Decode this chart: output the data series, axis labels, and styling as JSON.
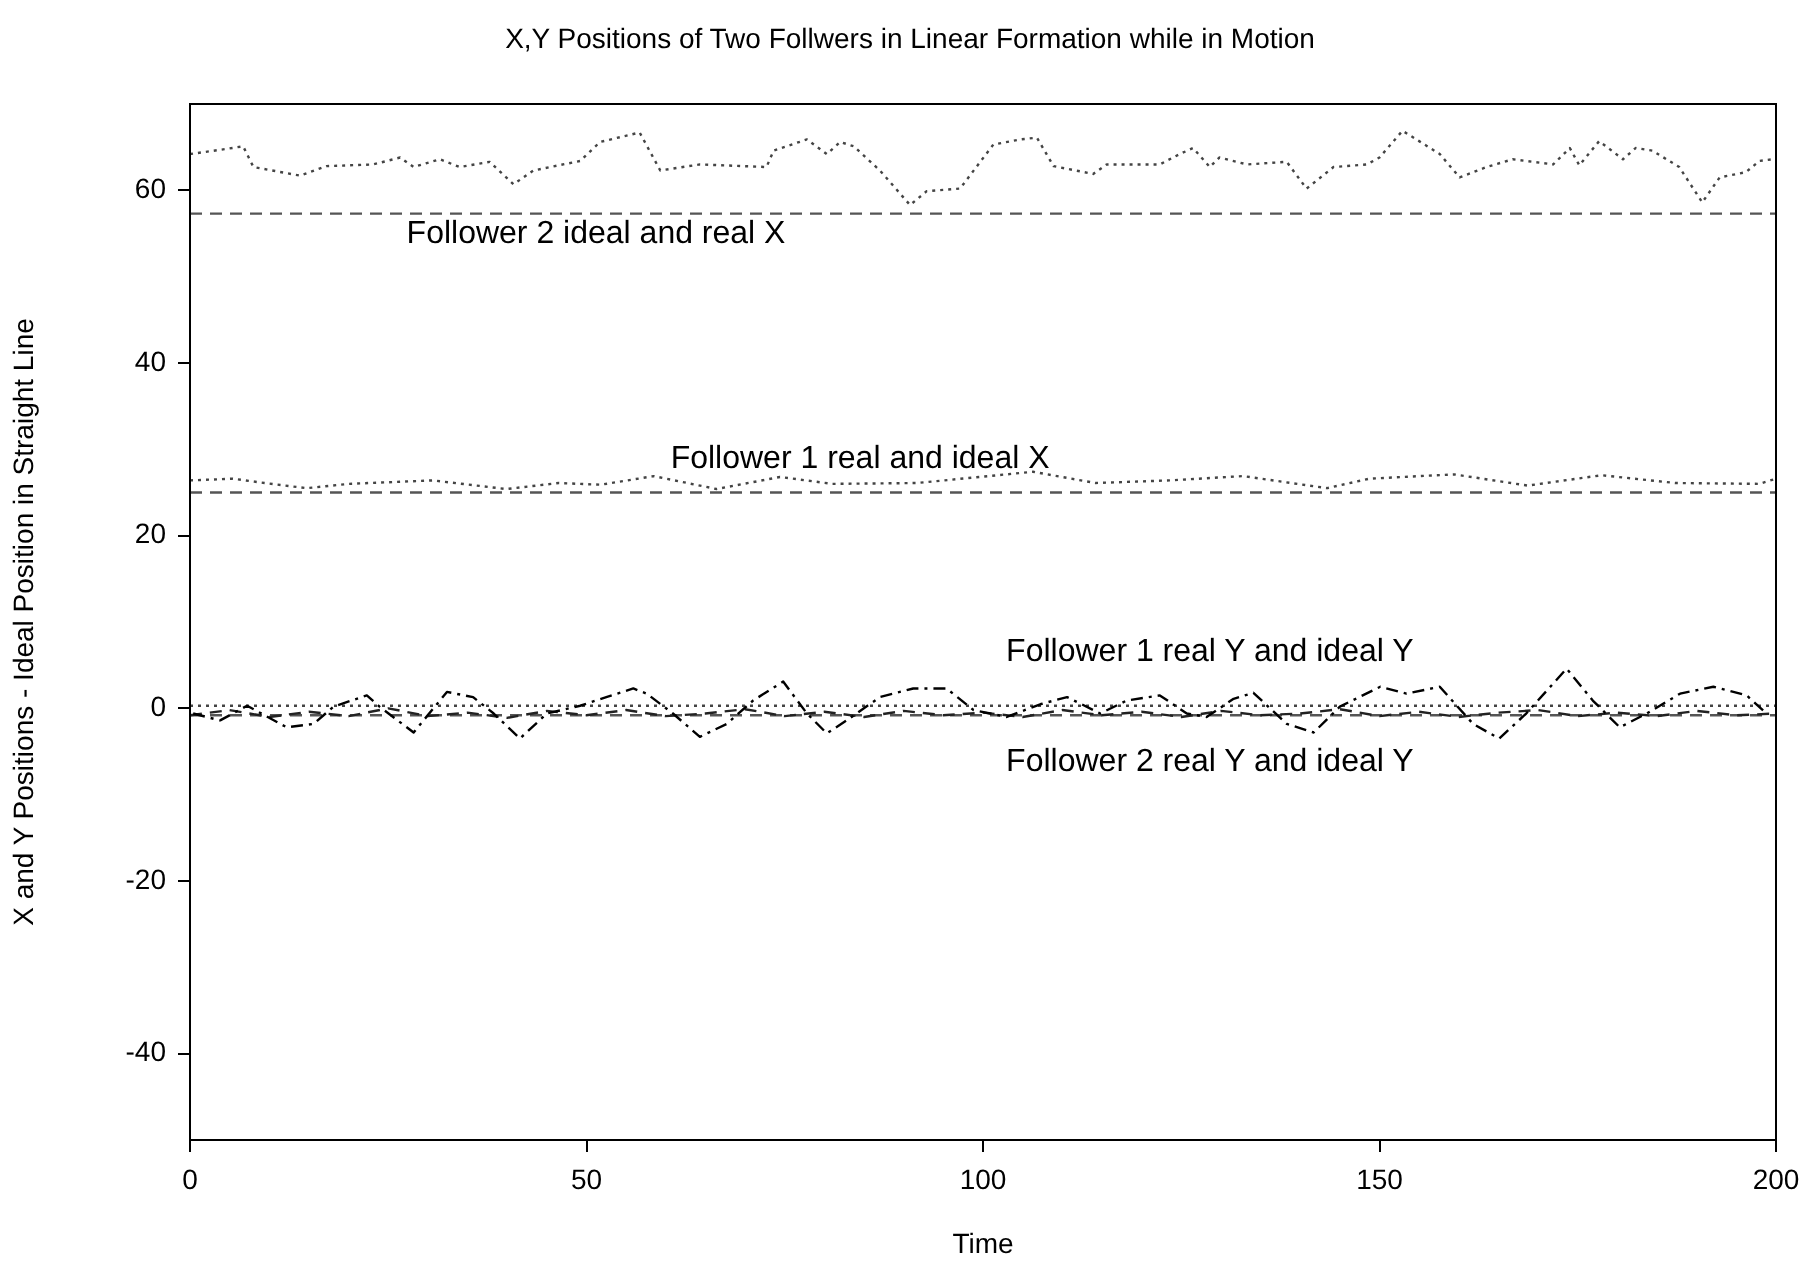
{
  "chart_data": {
    "type": "line",
    "title": "X,Y Positions of Two Follwers in Linear Formation while in Motion",
    "xlabel": "Time",
    "ylabel": "X and Y Positions - Ideal Position in Straight Line",
    "xlim": [
      0,
      200
    ],
    "xticks": [
      0,
      50,
      100,
      150,
      200
    ],
    "ylim": [
      -50,
      70
    ],
    "yticks": [
      -40,
      -20,
      0,
      20,
      40,
      60
    ],
    "grid": false,
    "legend": false,
    "marker": "none",
    "series": [
      {
        "color": "#444444",
        "line_style": "dotted",
        "x": [
          0,
          4.6,
          6.7,
          8.0,
          13.9,
          17.2,
          23.1,
          26.5,
          28.2,
          31.5,
          34.0,
          37.8,
          40.8,
          43.3,
          49.2,
          51.7,
          56.7,
          59.3,
          64.3,
          72.7,
          73.6,
          77.8,
          80.3,
          82.0,
          83.7,
          87.0,
          90.8,
          92.9,
          97.1,
          101.3,
          104.7,
          106.8,
          108.9,
          113.9,
          115.6,
          122.3,
          124.8,
          126.5,
          128.6,
          129.8,
          133.3,
          138.3,
          140.8,
          144.2,
          148.4,
          150.0,
          152.9,
          155.0,
          157.6,
          160.1,
          163.5,
          166.8,
          171.9,
          174.0,
          175.2,
          177.7,
          180.7,
          182.3,
          184.4,
          187.8,
          190.7,
          192.9,
          196.2,
          197.9,
          199.6
        ],
        "values": [
          64.2,
          64.8,
          65.1,
          62.7,
          61.7,
          62.8,
          63.0,
          63.8,
          62.7,
          63.6,
          62.7,
          63.3,
          60.7,
          62.3,
          63.4,
          65.6,
          66.7,
          62.3,
          63.0,
          62.7,
          64.6,
          65.9,
          64.2,
          65.6,
          65.1,
          62.3,
          58.3,
          59.9,
          60.2,
          65.3,
          65.9,
          66.1,
          62.8,
          61.9,
          63.0,
          63.0,
          64.2,
          64.9,
          62.7,
          63.8,
          63.0,
          63.3,
          60.2,
          62.7,
          63.0,
          63.8,
          66.9,
          65.7,
          64.2,
          61.5,
          62.7,
          63.6,
          63.0,
          64.9,
          62.9,
          65.7,
          63.6,
          64.9,
          64.6,
          62.7,
          58.6,
          61.5,
          62.1,
          63.4,
          63.6
        ]
      },
      {
        "color": "#555555",
        "line_style": "dashed",
        "x": [
          0,
          200
        ],
        "values": [
          57.3,
          57.3
        ]
      },
      {
        "color": "#444444",
        "line_style": "dotted",
        "x": [
          0,
          5.4,
          9.4,
          14.7,
          20.0,
          30.6,
          39.9,
          46.5,
          51.8,
          58.5,
          66.4,
          74.4,
          81.0,
          91.7,
          106.3,
          114.2,
          123.5,
          132.8,
          143.4,
          148.7,
          159.4,
          168.7,
          178.0,
          187.3,
          197.9,
          200
        ],
        "values": [
          26.4,
          26.6,
          26.1,
          25.5,
          26.0,
          26.4,
          25.4,
          26.1,
          25.9,
          26.9,
          25.4,
          26.8,
          26.0,
          26.1,
          27.4,
          26.1,
          26.4,
          26.9,
          25.5,
          26.6,
          27.1,
          25.8,
          27.0,
          26.1,
          26.0,
          26.6
        ]
      },
      {
        "color": "#555555",
        "line_style": "dashed",
        "x": [
          0,
          200
        ],
        "values": [
          25,
          25
        ]
      },
      {
        "color": "#000000",
        "line_style": "dashdot",
        "x": [
          0.4,
          3.8,
          7.2,
          12.2,
          15.6,
          18.1,
          22.3,
          23.9,
          28.2,
          32.4,
          35.7,
          38.3,
          41.6,
          45.0,
          49.2,
          52.5,
          55.9,
          57.6,
          60.9,
          64.3,
          67.7,
          71.0,
          74.8,
          77.8,
          80.3,
          82.8,
          87.0,
          91.2,
          95.4,
          98.8,
          103.0,
          107.3,
          110.6,
          114.8,
          118.1,
          122.3,
          125.7,
          128.2,
          131.6,
          134.1,
          138.3,
          141.7,
          145.0,
          150.1,
          153.4,
          157.6,
          161.8,
          165.1,
          168.5,
          173.6,
          176.9,
          180.3,
          183.7,
          187.9,
          192.1,
          196.3,
          198.8
        ],
        "values": [
          -0.6,
          -1.4,
          0.3,
          -2.2,
          -1.8,
          0.2,
          1.5,
          0.2,
          -2.8,
          1.9,
          1.3,
          -0.6,
          -3.5,
          -0.6,
          0.3,
          1.3,
          2.3,
          1.7,
          -0.6,
          -3.3,
          -1.8,
          0.9,
          3.1,
          -0.6,
          -2.9,
          -1.4,
          1.3,
          2.3,
          2.3,
          -0.2,
          -1.0,
          0.5,
          1.3,
          -0.6,
          0.9,
          1.5,
          -0.6,
          -1.0,
          1.1,
          1.8,
          -1.8,
          -2.8,
          0.2,
          2.5,
          1.7,
          2.5,
          -1.8,
          -3.5,
          -0.6,
          4.6,
          0.9,
          -2.2,
          -0.6,
          1.7,
          2.5,
          1.5,
          -0.6
        ]
      },
      {
        "color": "#444444",
        "line_style": "dotted",
        "x": [
          0,
          200
        ],
        "values": [
          0.3,
          0.3
        ]
      },
      {
        "color": "#222222",
        "line_style": "dashed",
        "x": [
          0,
          5,
          10,
          15,
          20,
          25,
          30,
          35,
          40,
          45,
          50,
          55,
          60,
          65,
          70,
          75,
          80,
          85,
          90,
          95,
          100,
          105,
          110,
          115,
          120,
          125,
          130,
          135,
          140,
          145,
          150,
          155,
          160,
          165,
          170,
          175,
          180,
          185,
          190,
          195,
          200
        ],
        "values": [
          -0.8,
          -0.2,
          -1.0,
          -0.4,
          -0.9,
          0.0,
          -0.9,
          -0.5,
          -1.1,
          -0.3,
          -0.8,
          -0.2,
          -0.9,
          -0.6,
          -0.1,
          -0.9,
          -0.4,
          -1.0,
          -0.3,
          -0.8,
          -0.5,
          -1.0,
          -0.2,
          -0.8,
          -0.4,
          -1.0,
          -0.3,
          -0.8,
          -0.6,
          -0.1,
          -0.9,
          -0.4,
          -1.0,
          -0.5,
          -0.2,
          -0.9,
          -0.5,
          -0.9,
          -0.3,
          -0.8,
          -0.6
        ]
      },
      {
        "color": "#555555",
        "line_style": "dashed",
        "x": [
          0,
          200
        ],
        "values": [
          -0.8,
          -0.8
        ]
      }
    ],
    "annotations": [
      "Follower 2 ideal and real X",
      "Follower 1 real and ideal X",
      "Follower 1 real Y and ideal Y",
      "Follower 2 real Y and ideal Y"
    ]
  }
}
